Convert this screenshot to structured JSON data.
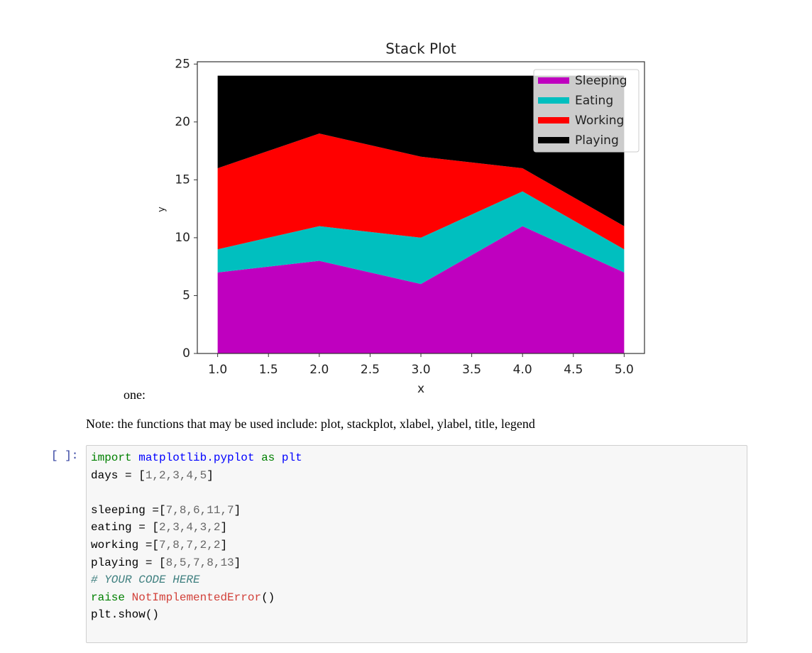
{
  "chart_data": {
    "type": "stackplot",
    "title": "Stack Plot",
    "xlabel": "x",
    "ylabel": "y",
    "x": [
      1,
      2,
      3,
      4,
      5
    ],
    "series": [
      {
        "name": "Sleeping",
        "color": "#bf00bf",
        "values": [
          7,
          8,
          6,
          11,
          7
        ]
      },
      {
        "name": "Eating",
        "color": "#00bfbf",
        "values": [
          2,
          3,
          4,
          3,
          2
        ]
      },
      {
        "name": "Working",
        "color": "#ff0000",
        "values": [
          7,
          8,
          7,
          2,
          2
        ]
      },
      {
        "name": "Playing",
        "color": "#000000",
        "values": [
          8,
          5,
          7,
          8,
          13
        ]
      }
    ],
    "xlim": [
      0.8,
      5.2
    ],
    "ylim": [
      0,
      25.2
    ],
    "xticks": [
      {
        "value": 1,
        "label": "1.0"
      },
      {
        "value": 1.5,
        "label": "1.5"
      },
      {
        "value": 2,
        "label": "2.0"
      },
      {
        "value": 2.5,
        "label": "2.5"
      },
      {
        "value": 3,
        "label": "3.0"
      },
      {
        "value": 3.5,
        "label": "3.5"
      },
      {
        "value": 4,
        "label": "4.0"
      },
      {
        "value": 4.5,
        "label": "4.5"
      },
      {
        "value": 5,
        "label": "5.0"
      }
    ],
    "yticks": [
      0,
      5,
      10,
      15,
      20,
      25
    ],
    "legend": "upper right"
  },
  "text_before": "one:",
  "note": "Note: the functions that may be used include: plot, stackplot, xlabel, ylabel, title, legend",
  "cell": {
    "prompt": "[ ]:",
    "lines": [
      [
        {
          "text": "import",
          "color": "#008000"
        },
        {
          "text": " ",
          "color": "#000000"
        },
        {
          "text": "matplotlib.pyplot",
          "color": "#0000ff"
        },
        {
          "text": " ",
          "color": "#000000"
        },
        {
          "text": "as",
          "color": "#008000"
        },
        {
          "text": " ",
          "color": "#000000"
        },
        {
          "text": "plt",
          "color": "#0000ff"
        }
      ],
      [
        {
          "text": "days = [",
          "color": "#000000"
        },
        {
          "text": "1,2,3,4,5",
          "color": "#666666"
        },
        {
          "text": "]",
          "color": "#000000"
        }
      ],
      [],
      [
        {
          "text": "sleeping =[",
          "color": "#000000"
        },
        {
          "text": "7,8,6,11,7",
          "color": "#666666"
        },
        {
          "text": "]",
          "color": "#000000"
        }
      ],
      [
        {
          "text": "eating = [",
          "color": "#000000"
        },
        {
          "text": "2,3,4,3,2",
          "color": "#666666"
        },
        {
          "text": "]",
          "color": "#000000"
        }
      ],
      [
        {
          "text": "working =[",
          "color": "#000000"
        },
        {
          "text": "7,8,7,2,2",
          "color": "#666666"
        },
        {
          "text": "]",
          "color": "#000000"
        }
      ],
      [
        {
          "text": "playing = [",
          "color": "#000000"
        },
        {
          "text": "8,5,7,8,13",
          "color": "#666666"
        },
        {
          "text": "]",
          "color": "#000000"
        }
      ],
      [
        {
          "text": "# YOUR CODE HERE",
          "color": "#408080",
          "italic": true
        }
      ],
      [
        {
          "text": "raise",
          "color": "#008000"
        },
        {
          "text": " ",
          "color": "#000000"
        },
        {
          "text": "NotImplementedError",
          "color": "#d2413a"
        },
        {
          "text": "()",
          "color": "#000000"
        }
      ],
      [
        {
          "text": "plt.show()",
          "color": "#000000"
        }
      ]
    ]
  }
}
